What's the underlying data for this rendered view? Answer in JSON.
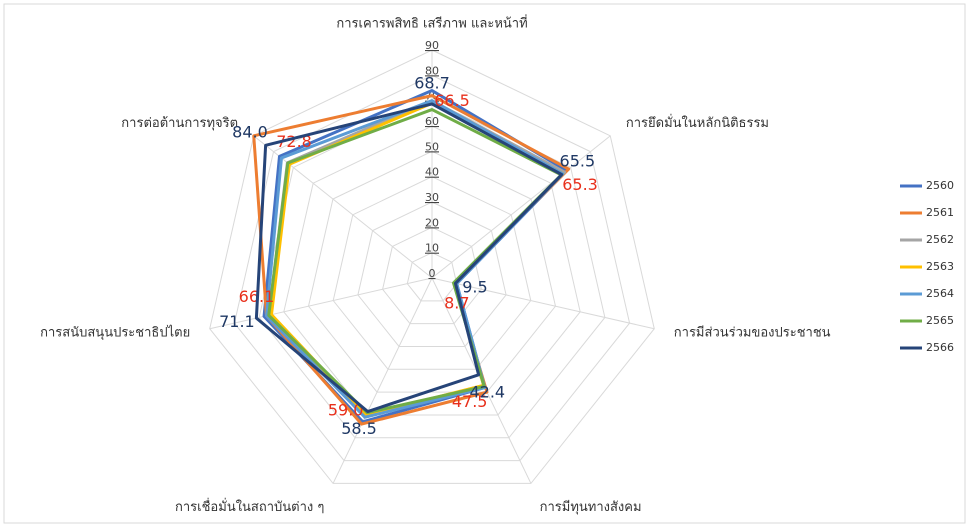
{
  "chart_data": {
    "type": "radar",
    "categories": [
      "การเคารพสิทธิ เสรีภาพ และหน้าที่",
      "การยึดมั่นในหลักนิติธรรม",
      "การมีส่วนร่วมของประชาชน",
      "การมีทุนทางสังคม",
      "การเชื่อมั่นในสถาบันต่าง ๆ",
      "การสนับสนุนประชาธิปไตย",
      "การต่อต้านการทุจริต"
    ],
    "rlim": [
      0,
      90
    ],
    "rticks": [
      0,
      10,
      20,
      30,
      40,
      50,
      60,
      70,
      80,
      90
    ],
    "grid": true,
    "legend": "right",
    "series": [
      {
        "name": "2560",
        "color": "#4472c4",
        "values": [
          74,
          68,
          10,
          48,
          63,
          68,
          77
        ]
      },
      {
        "name": "2561",
        "color": "#ed7d31",
        "values": [
          72,
          69,
          9,
          50,
          64,
          67,
          90
        ]
      },
      {
        "name": "2562",
        "color": "#a5a5a5",
        "values": [
          70,
          67,
          9,
          47,
          61,
          66,
          73
        ]
      },
      {
        "name": "2563",
        "color": "#ffc000",
        "values": [
          69,
          66,
          9,
          47,
          60,
          65,
          72
        ]
      },
      {
        "name": "2564",
        "color": "#5b9bd5",
        "values": [
          70,
          66,
          10,
          48,
          61,
          67,
          76
        ]
      },
      {
        "name": "2565",
        "color": "#70ad47",
        "label_color": "#e8301c",
        "values": [
          66.5,
          65.3,
          8.7,
          47.5,
          59,
          66.1,
          72.8
        ],
        "value_labels": [
          "66.5",
          "65.3",
          "8.7",
          "47.5",
          "59.0",
          "66.1",
          "72.8"
        ]
      },
      {
        "name": "2566",
        "color": "#264478",
        "label_color": "#1f3864",
        "values": [
          68.7,
          65.5,
          9.5,
          42.4,
          58.5,
          71.1,
          84
        ],
        "value_labels": [
          "68.7",
          "65.5",
          "9.5",
          "42.4",
          "58.5",
          "71.1",
          "84.0"
        ]
      }
    ]
  }
}
